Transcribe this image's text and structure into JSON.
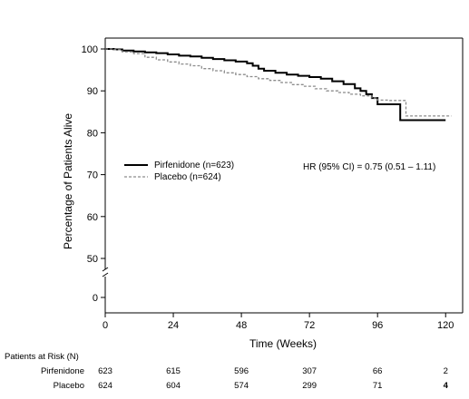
{
  "chart_data": {
    "type": "line",
    "xlabel": "Time (Weeks)",
    "ylabel": "Percentage of Patients Alive",
    "xlim": [
      0,
      126
    ],
    "ylim": [
      0,
      100
    ],
    "axis_break": true,
    "grid": false,
    "x_ticks": [
      0,
      24,
      48,
      72,
      96,
      120
    ],
    "y_ticks": [
      0,
      50,
      60,
      70,
      80,
      90,
      100
    ],
    "legend": {
      "placement": "middle-left",
      "entries": [
        "Pirfenidone (n=623)",
        "Placebo (n=624)"
      ]
    },
    "annotation": "HR (95% CI) = 0.75 (0.51 – 1.11)",
    "series": [
      {
        "name": "Pirfenidone (n=623)",
        "color": "#000000",
        "line_style": "solid",
        "x": [
          0,
          3,
          6,
          10,
          14,
          18,
          22,
          26,
          30,
          34,
          38,
          42,
          46,
          50,
          52,
          54,
          56,
          60,
          64,
          68,
          72,
          76,
          80,
          84,
          88,
          90,
          92,
          94,
          96,
          100,
          102,
          104,
          108,
          112,
          116,
          120
        ],
        "y": [
          100,
          99.9,
          99.6,
          99.4,
          99.2,
          99.0,
          98.7,
          98.4,
          98.2,
          97.9,
          97.6,
          97.3,
          97.0,
          96.6,
          96.0,
          95.3,
          94.8,
          94.3,
          93.9,
          93.6,
          93.3,
          92.9,
          92.3,
          91.6,
          90.6,
          90.0,
          89.2,
          88.3,
          86.8,
          86.8,
          86.8,
          83.0,
          83.0,
          83.0,
          83.0,
          83.0
        ]
      },
      {
        "name": "Placebo (n=624)",
        "color": "#8c8c8c",
        "line_style": "dashed",
        "x": [
          0,
          3,
          6,
          10,
          14,
          18,
          22,
          26,
          30,
          34,
          38,
          42,
          46,
          50,
          54,
          58,
          62,
          66,
          70,
          74,
          78,
          82,
          86,
          90,
          94,
          96,
          100,
          104,
          106,
          110,
          114,
          118,
          122
        ],
        "y": [
          100,
          99.8,
          99.3,
          98.9,
          98.0,
          97.4,
          96.9,
          96.4,
          96.0,
          95.3,
          94.8,
          94.3,
          93.9,
          93.4,
          92.9,
          92.5,
          92.0,
          91.5,
          91.1,
          90.5,
          90.0,
          89.6,
          89.2,
          88.8,
          88.3,
          87.8,
          87.7,
          87.7,
          84.0,
          84.0,
          84.0,
          84.0,
          84.0
        ]
      }
    ],
    "patients_at_risk": {
      "title": "Patients at Risk (N)",
      "rows": [
        {
          "label": "Pirfenidone",
          "values": [
            "623",
            "615",
            "596",
            "307",
            "66",
            "2"
          ]
        },
        {
          "label": "Placebo",
          "values": [
            "624",
            "604",
            "574",
            "299",
            "71",
            "4"
          ]
        }
      ]
    }
  }
}
